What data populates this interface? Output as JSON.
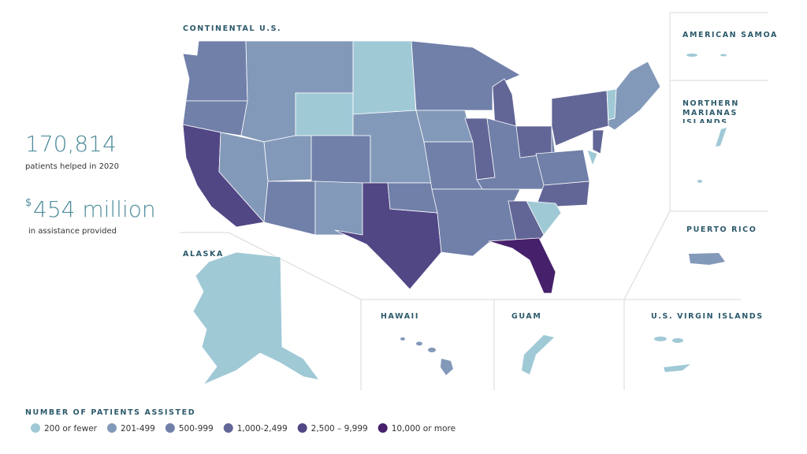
{
  "stats": [
    {
      "value": "170,814",
      "label": "patients helped in 2020"
    },
    {
      "prefix": "$",
      "value": "454 million",
      "label": "in assistance provided"
    }
  ],
  "regions": {
    "continental": "CONTINENTAL U.S.",
    "alaska": "ALASKA",
    "hawaii": "HAWAII",
    "guam": "GUAM",
    "virgin_islands": "U.S. VIRGIN ISLANDS",
    "american_samoa": "AMERICAN SAMOA",
    "northern_marianas": "NORTHERN MARIANAS ISLANDS",
    "puerto_rico": "PUERTO RICO"
  },
  "legend": {
    "title": "NUMBER OF PATIENTS ASSISTED",
    "items": [
      {
        "label": "200 or fewer",
        "color": "#a0c9d6"
      },
      {
        "label": "201-499",
        "color": "#8399b9"
      },
      {
        "label": "500-999",
        "color": "#7080a9"
      },
      {
        "label": "1,000-2,499",
        "color": "#626696"
      },
      {
        "label": "2,500 – 9,999",
        "color": "#524785"
      },
      {
        "label": "10,000 or more",
        "color": "#46216b"
      }
    ]
  }
}
